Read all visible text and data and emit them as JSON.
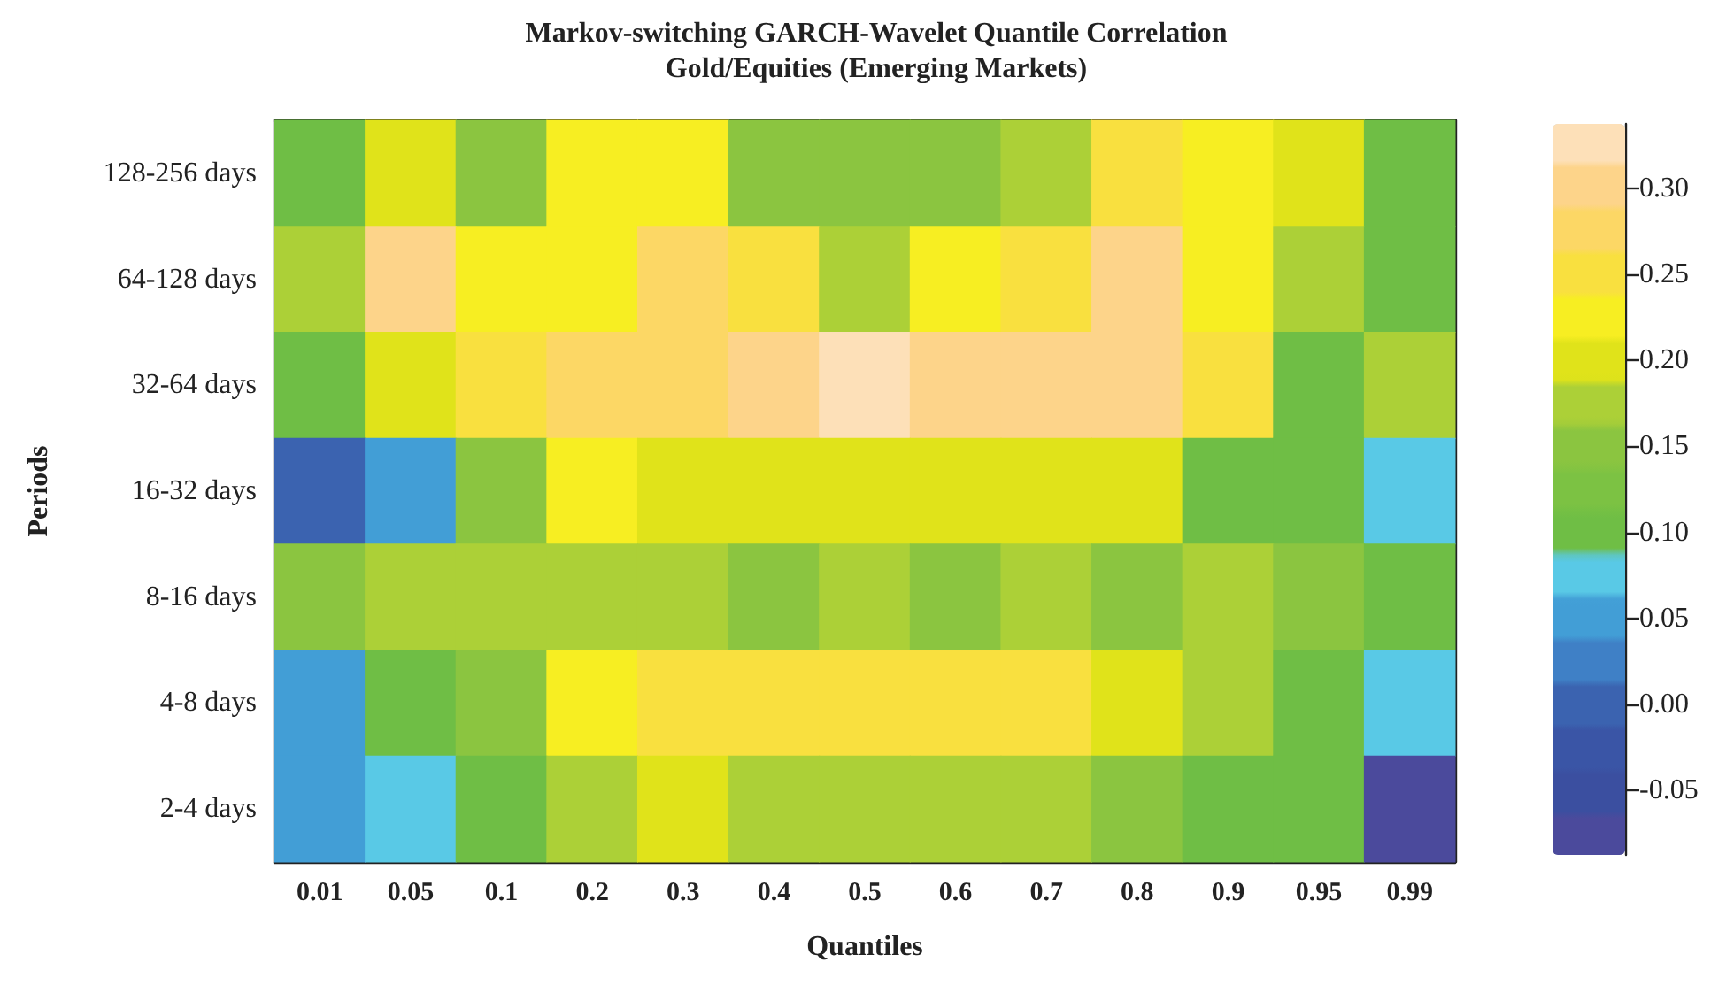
{
  "chart_data": {
    "type": "heatmap",
    "title": "Markov-switching GARCH-Wavelet Quantile Correlation",
    "subtitle": "Gold/Equities (Emerging Markets)",
    "xlabel": "Quantiles",
    "ylabel": "Periods",
    "categories": [
      "0.01",
      "0.05",
      "0.1",
      "0.2",
      "0.3",
      "0.4",
      "0.5",
      "0.6",
      "0.7",
      "0.8",
      "0.9",
      "0.95",
      "0.99"
    ],
    "y_categories": [
      "128-256 days",
      "64-128 days",
      "32-64 days",
      "16-32 days",
      "8-16 days",
      "4-8 days",
      "2-4 days"
    ],
    "cells": [
      [
        0.1,
        0.2,
        0.15,
        0.225,
        0.225,
        0.15,
        0.15,
        0.15,
        0.175,
        0.25,
        0.225,
        0.2,
        0.1
      ],
      [
        0.175,
        0.3,
        0.225,
        0.225,
        0.275,
        0.25,
        0.175,
        0.225,
        0.25,
        0.3,
        0.225,
        0.175,
        0.1
      ],
      [
        0.1,
        0.2,
        0.25,
        0.275,
        0.275,
        0.3,
        0.325,
        0.3,
        0.3,
        0.3,
        0.25,
        0.1,
        0.175
      ],
      [
        0.0,
        0.05,
        0.15,
        0.225,
        0.2,
        0.2,
        0.2,
        0.2,
        0.2,
        0.2,
        0.1,
        0.1,
        0.075
      ],
      [
        0.15,
        0.175,
        0.175,
        0.175,
        0.175,
        0.15,
        0.175,
        0.15,
        0.175,
        0.15,
        0.175,
        0.15,
        0.1
      ],
      [
        0.05,
        0.1,
        0.15,
        0.225,
        0.25,
        0.25,
        0.25,
        0.25,
        0.25,
        0.2,
        0.175,
        0.1,
        0.075
      ],
      [
        0.05,
        0.075,
        0.1,
        0.175,
        0.2,
        0.175,
        0.175,
        0.175,
        0.175,
        0.15,
        0.1,
        0.1,
        -0.075
      ]
    ],
    "clim": [
      -0.0875,
      0.3375
    ],
    "cticks": [
      {
        "value": -0.05,
        "label": "-0.05"
      },
      {
        "value": 0,
        "label": "0.00"
      },
      {
        "value": 0.05,
        "label": "0.05"
      },
      {
        "value": 0.1,
        "label": "0.10"
      },
      {
        "value": 0.15,
        "label": "0.15"
      },
      {
        "value": 0.2,
        "label": "0.20"
      },
      {
        "value": 0.25,
        "label": "0.25"
      },
      {
        "value": 0.3,
        "label": "0.30"
      }
    ]
  }
}
